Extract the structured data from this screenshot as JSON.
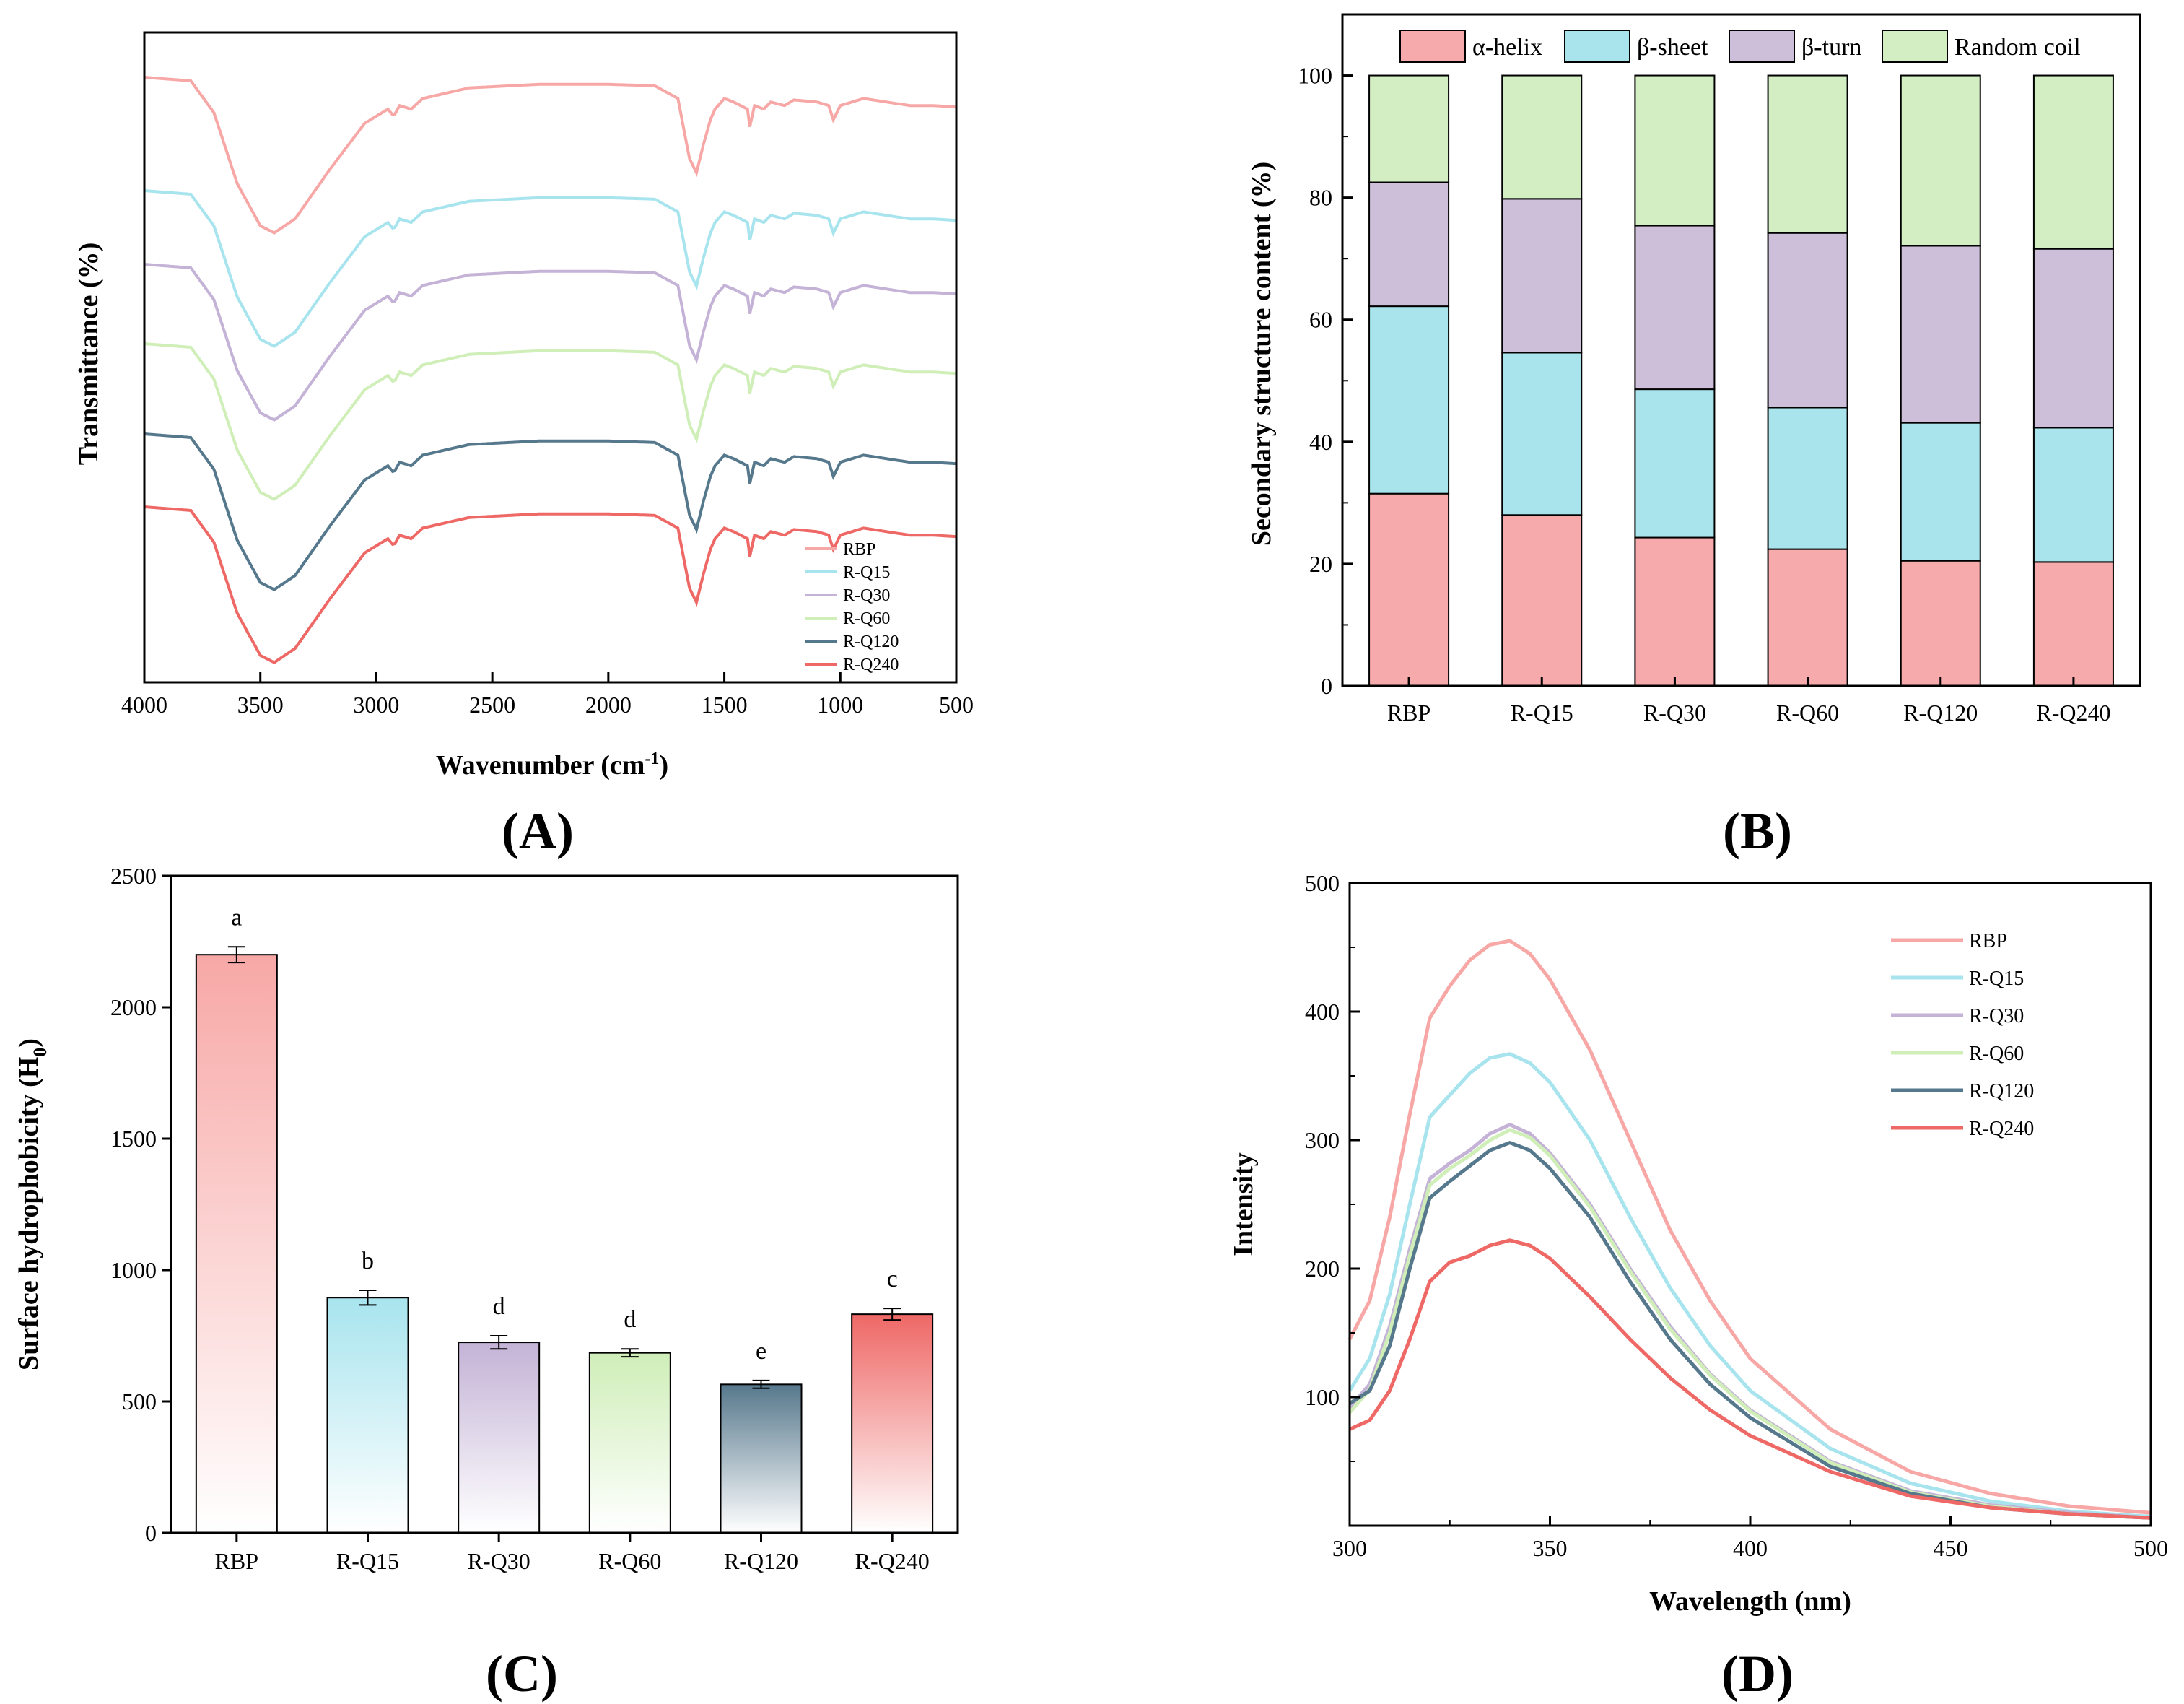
{
  "figure": {
    "panels": [
      {
        "id": "A",
        "label": "(A)"
      },
      {
        "id": "B",
        "label": "(B)"
      },
      {
        "id": "C",
        "label": "(C)"
      },
      {
        "id": "D",
        "label": "(D)"
      }
    ]
  },
  "colors": {
    "RBP": "#f7a8a6",
    "R-Q15": "#a8e4ee",
    "R-Q30": "#c4b3d6",
    "R-Q60": "#cfeeb8",
    "R-Q120": "#56788c",
    "R-Q240": "#ee6866",
    "helix": "#f7aaab",
    "sheet": "#a9e4ec",
    "turn": "#cdbfd9",
    "coil": "#d3eec3"
  },
  "chart_data": [
    {
      "type": "line",
      "panel": "A",
      "xlabel": "Wavenumber (cm",
      "xlabel_sup": "-1",
      "xlabel_close": ")",
      "ylabel": "Transmittance (%)",
      "xlim": [
        4000,
        500
      ],
      "x_reversed": true,
      "x_ticks": [
        4000,
        3500,
        3000,
        2500,
        2000,
        1500,
        1000,
        500
      ],
      "y_ticks_shown": false,
      "legend_position": "lower-right",
      "series": [
        {
          "name": "RBP",
          "offset": 5.0
        },
        {
          "name": "R-Q15",
          "offset": 4.0
        },
        {
          "name": "R-Q30",
          "offset": 3.0
        },
        {
          "name": "R-Q60",
          "offset": 2.0
        },
        {
          "name": "R-Q120",
          "offset": 1.0
        },
        {
          "name": "R-Q240",
          "offset": 0.0
        }
      ],
      "spectrum_shape": [
        [
          4000,
          0.0
        ],
        [
          3800,
          0.05
        ],
        [
          3700,
          0.5
        ],
        [
          3600,
          1.5
        ],
        [
          3500,
          2.1
        ],
        [
          3440,
          2.2
        ],
        [
          3350,
          2.0
        ],
        [
          3200,
          1.3
        ],
        [
          3050,
          0.65
        ],
        [
          2950,
          0.45
        ],
        [
          2925,
          0.55
        ],
        [
          2900,
          0.4
        ],
        [
          2850,
          0.45
        ],
        [
          2800,
          0.3
        ],
        [
          2600,
          0.15
        ],
        [
          2300,
          0.1
        ],
        [
          2000,
          0.1
        ],
        [
          1800,
          0.12
        ],
        [
          1700,
          0.3
        ],
        [
          1650,
          1.15
        ],
        [
          1620,
          1.35
        ],
        [
          1590,
          0.95
        ],
        [
          1560,
          0.6
        ],
        [
          1540,
          0.45
        ],
        [
          1500,
          0.3
        ],
        [
          1460,
          0.35
        ],
        [
          1400,
          0.45
        ],
        [
          1390,
          0.7
        ],
        [
          1370,
          0.4
        ],
        [
          1330,
          0.45
        ],
        [
          1300,
          0.35
        ],
        [
          1240,
          0.4
        ],
        [
          1200,
          0.32
        ],
        [
          1100,
          0.35
        ],
        [
          1050,
          0.4
        ],
        [
          1030,
          0.6
        ],
        [
          1000,
          0.4
        ],
        [
          950,
          0.35
        ],
        [
          900,
          0.3
        ],
        [
          800,
          0.35
        ],
        [
          700,
          0.4
        ],
        [
          600,
          0.4
        ],
        [
          500,
          0.42
        ]
      ]
    },
    {
      "type": "bar",
      "stacked": true,
      "panel": "B",
      "categories": [
        "RBP",
        "R-Q15",
        "R-Q30",
        "R-Q60",
        "R-Q120",
        "R-Q240"
      ],
      "ylabel": "Secondary structure content (%)",
      "ylim": [
        0,
        110
      ],
      "y_ticks": [
        0,
        20,
        40,
        60,
        80,
        100
      ],
      "legend_position": "top",
      "series": [
        {
          "name": "α-helix",
          "key": "helix",
          "values": [
            31.5,
            28.0,
            24.3,
            22.4,
            20.5,
            20.3
          ]
        },
        {
          "name": "β-sheet",
          "key": "sheet",
          "values": [
            30.7,
            26.6,
            24.3,
            23.2,
            22.6,
            22.0
          ]
        },
        {
          "name": "β-turn",
          "key": "turn",
          "values": [
            20.3,
            25.2,
            26.8,
            28.6,
            29.0,
            29.3
          ]
        },
        {
          "name": "Random coil",
          "key": "coil",
          "values": [
            17.5,
            20.2,
            24.6,
            25.8,
            27.9,
            28.4
          ]
        }
      ]
    },
    {
      "type": "bar",
      "panel": "C",
      "categories": [
        "RBP",
        "R-Q15",
        "R-Q30",
        "R-Q60",
        "R-Q120",
        "R-Q240"
      ],
      "values": [
        2200,
        895,
        725,
        685,
        565,
        832
      ],
      "errors": [
        30,
        28,
        25,
        15,
        15,
        22
      ],
      "letters": [
        "a",
        "b",
        "d",
        "d",
        "e",
        "c"
      ],
      "ylabel": "Surface hydrophobicity (H",
      "ylabel_sub": "0",
      "ylabel_close": ")",
      "ylim": [
        0,
        2500
      ],
      "y_ticks": [
        0,
        500,
        1000,
        1500,
        2000,
        2500
      ]
    },
    {
      "type": "line",
      "panel": "D",
      "xlabel": "Wavelength (nm)",
      "ylabel": "Intensity",
      "xlim": [
        300,
        500
      ],
      "ylim": [
        0,
        500
      ],
      "x_ticks": [
        300,
        350,
        400,
        450,
        500
      ],
      "y_ticks": [
        100,
        200,
        300,
        400,
        500
      ],
      "legend_position": "top-right",
      "series": [
        {
          "name": "RBP",
          "x": [
            300,
            305,
            310,
            315,
            320,
            325,
            330,
            335,
            340,
            345,
            350,
            360,
            370,
            380,
            390,
            400,
            420,
            440,
            460,
            480,
            500
          ],
          "y": [
            145,
            175,
            240,
            320,
            395,
            420,
            440,
            452,
            455,
            445,
            425,
            370,
            300,
            230,
            175,
            130,
            75,
            42,
            25,
            15,
            10
          ]
        },
        {
          "name": "R-Q15",
          "x": [
            300,
            305,
            310,
            315,
            320,
            325,
            330,
            335,
            340,
            345,
            350,
            360,
            370,
            380,
            390,
            400,
            420,
            440,
            460,
            480,
            500
          ],
          "y": [
            105,
            130,
            180,
            250,
            318,
            335,
            352,
            364,
            367,
            360,
            345,
            300,
            240,
            185,
            140,
            105,
            60,
            33,
            19,
            11,
            7
          ]
        },
        {
          "name": "R-Q30",
          "x": [
            300,
            305,
            310,
            315,
            320,
            325,
            330,
            335,
            340,
            345,
            350,
            360,
            370,
            380,
            390,
            400,
            420,
            440,
            460,
            480,
            500
          ],
          "y": [
            92,
            110,
            155,
            215,
            270,
            282,
            292,
            305,
            312,
            305,
            290,
            250,
            200,
            155,
            118,
            90,
            50,
            27,
            16,
            10,
            6
          ]
        },
        {
          "name": "R-Q60",
          "x": [
            300,
            305,
            310,
            315,
            320,
            325,
            330,
            335,
            340,
            345,
            350,
            360,
            370,
            380,
            390,
            400,
            420,
            440,
            460,
            480,
            500
          ],
          "y": [
            88,
            106,
            150,
            210,
            265,
            278,
            288,
            300,
            308,
            302,
            288,
            248,
            198,
            153,
            117,
            89,
            49,
            26,
            15,
            9,
            6
          ]
        },
        {
          "name": "R-Q120",
          "x": [
            300,
            305,
            310,
            315,
            320,
            325,
            330,
            335,
            340,
            345,
            350,
            360,
            370,
            380,
            390,
            400,
            420,
            440,
            460,
            480,
            500
          ],
          "y": [
            95,
            105,
            140,
            200,
            255,
            268,
            280,
            292,
            298,
            292,
            278,
            240,
            190,
            145,
            110,
            84,
            46,
            25,
            14,
            9,
            6
          ]
        },
        {
          "name": "R-Q240",
          "x": [
            300,
            305,
            310,
            315,
            320,
            325,
            330,
            335,
            340,
            345,
            350,
            360,
            370,
            380,
            390,
            400,
            420,
            440,
            460,
            480,
            500
          ],
          "y": [
            75,
            82,
            105,
            145,
            190,
            205,
            210,
            218,
            222,
            218,
            208,
            178,
            145,
            115,
            90,
            70,
            42,
            23,
            14,
            9,
            6
          ]
        }
      ]
    }
  ]
}
